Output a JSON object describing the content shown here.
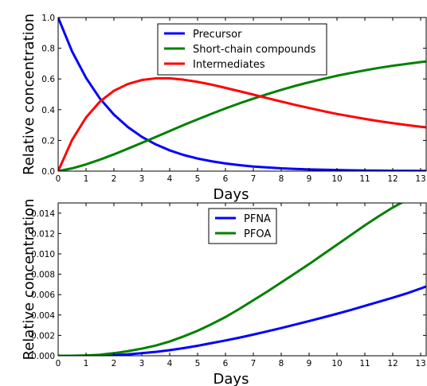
{
  "chart_data": [
    {
      "type": "line",
      "xlabel": "Days",
      "ylabel": "Relative concentration",
      "xlim": [
        0,
        13.2
      ],
      "ylim": [
        0,
        1.0
      ],
      "xticks": [
        0,
        1,
        2,
        3,
        4,
        5,
        6,
        7,
        8,
        9,
        10,
        11,
        12,
        13
      ],
      "xtick_labels": [
        "0",
        "1",
        "2",
        "3",
        "4",
        "5",
        "6",
        "7",
        "8",
        "9",
        "10",
        "11",
        "12",
        "13"
      ],
      "yticks": [
        0,
        0.2,
        0.4,
        0.6,
        0.8,
        1.0
      ],
      "ytick_labels": [
        "0.0",
        "0.2",
        "0.4",
        "0.6",
        "0.8",
        "1.0"
      ],
      "legend_position": "top-center",
      "grid": false,
      "x": [
        0,
        0.5,
        1,
        1.5,
        2,
        2.5,
        3,
        3.5,
        4,
        4.5,
        5,
        5.5,
        6,
        6.5,
        7,
        7.5,
        8,
        8.5,
        9,
        9.5,
        10,
        10.5,
        11,
        11.5,
        12,
        12.5,
        13,
        13.2
      ],
      "series": [
        {
          "name": "Precursor",
          "color": "#0000ff",
          "values": [
            1.0,
            0.779,
            0.607,
            0.472,
            0.368,
            0.287,
            0.223,
            0.174,
            0.135,
            0.105,
            0.082,
            0.064,
            0.05,
            0.039,
            0.03,
            0.024,
            0.018,
            0.014,
            0.011,
            0.009,
            0.007,
            0.005,
            0.004,
            0.003,
            0.002,
            0.002,
            0.001,
            0.001
          ]
        },
        {
          "name": "Short-chain compounds",
          "color": "#008000",
          "values": [
            0.0,
            0.018,
            0.044,
            0.075,
            0.109,
            0.146,
            0.184,
            0.222,
            0.261,
            0.3,
            0.337,
            0.373,
            0.408,
            0.441,
            0.472,
            0.501,
            0.529,
            0.555,
            0.578,
            0.6,
            0.621,
            0.639,
            0.656,
            0.672,
            0.686,
            0.698,
            0.71,
            0.714
          ]
        },
        {
          "name": "Intermediates",
          "color": "#ff0000",
          "values": [
            0.0,
            0.203,
            0.349,
            0.453,
            0.523,
            0.567,
            0.593,
            0.604,
            0.604,
            0.595,
            0.581,
            0.563,
            0.542,
            0.52,
            0.498,
            0.475,
            0.453,
            0.431,
            0.411,
            0.391,
            0.372,
            0.356,
            0.34,
            0.325,
            0.312,
            0.3,
            0.289,
            0.285
          ]
        }
      ]
    },
    {
      "type": "line",
      "xlabel": "Days",
      "ylabel": "Relative concentration",
      "xlim": [
        0,
        13.2
      ],
      "ylim": [
        0,
        0.015
      ],
      "xticks": [
        0,
        1,
        2,
        3,
        4,
        5,
        6,
        7,
        8,
        9,
        10,
        11,
        12,
        13
      ],
      "xtick_labels": [
        "0",
        "1",
        "2",
        "3",
        "4",
        "5",
        "6",
        "7",
        "8",
        "9",
        "10",
        "11",
        "12",
        "13"
      ],
      "yticks": [
        0,
        0.002,
        0.004,
        0.006,
        0.008,
        0.01,
        0.012,
        0.014
      ],
      "ytick_labels": [
        "0.000",
        "0.002",
        "0.004",
        "0.006",
        "0.008",
        "0.010",
        "0.012",
        "0.014"
      ],
      "legend_position": "top-center",
      "grid": false,
      "x": [
        0,
        0.5,
        1,
        1.5,
        2,
        2.5,
        3,
        3.5,
        4,
        4.5,
        5,
        5.5,
        6,
        6.5,
        7,
        7.5,
        8,
        8.5,
        9,
        9.5,
        10,
        10.5,
        11,
        11.5,
        12,
        12.5,
        13,
        13.2
      ],
      "series": [
        {
          "name": "PFNA",
          "color": "#0000ff",
          "values": [
            0.0,
            0.0,
            1e-05,
            3e-05,
            7e-05,
            0.00014,
            0.00025,
            0.00038,
            0.00055,
            0.00075,
            0.00098,
            0.00124,
            0.0015,
            0.00178,
            0.00208,
            0.0024,
            0.00272,
            0.00306,
            0.0034,
            0.00376,
            0.00412,
            0.0045,
            0.0049,
            0.0053,
            0.0057,
            0.00612,
            0.0066,
            0.0068
          ]
        },
        {
          "name": "PFOA",
          "color": "#008000",
          "values": [
            0.0,
            0.0,
            3e-05,
            0.0001,
            0.00025,
            0.00045,
            0.0007,
            0.001,
            0.0014,
            0.0019,
            0.00245,
            0.0031,
            0.0038,
            0.0046,
            0.00545,
            0.0063,
            0.0072,
            0.0081,
            0.009,
            0.00995,
            0.0109,
            0.01185,
            0.0128,
            0.0137,
            0.01455,
            0.0153,
            0.01595,
            0.01615
          ]
        }
      ]
    }
  ]
}
